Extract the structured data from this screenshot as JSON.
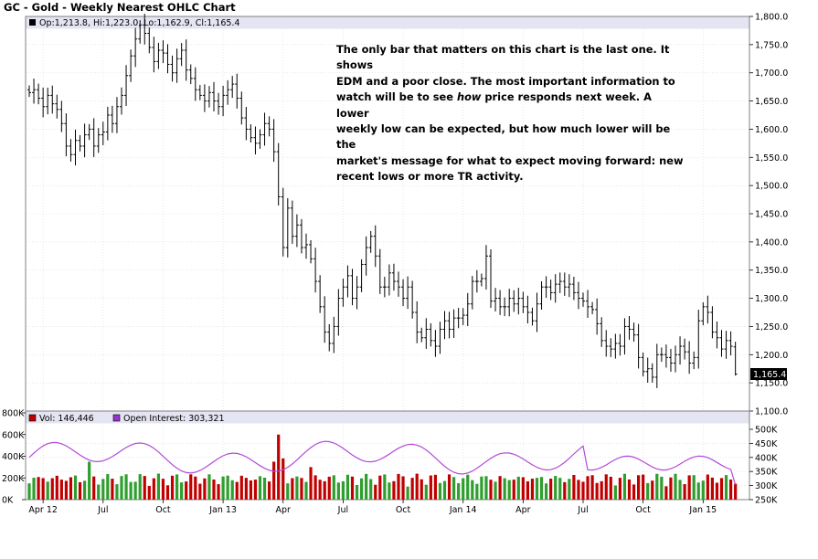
{
  "chart_data": {
    "type": "ohlc",
    "title": "GC - Gold - Weekly Nearest OHLC Chart",
    "ohlc_readout": "Op:1,213.8, Hi:1,223.0, Lo:1,162.9, Cl:1,165.4",
    "last_price_label": "1,165.4",
    "last_close": 1165.4,
    "price_axis": {
      "range": [
        1100,
        1800
      ],
      "ticks": [
        "1,800.0",
        "1,750.0",
        "1,700.0",
        "1,650.0",
        "1,600.0",
        "1,550.0",
        "1,500.0",
        "1,450.0",
        "1,400.0",
        "1,350.0",
        "1,300.0",
        "1,250.0",
        "1,200.0",
        "1,150.0",
        "1,100.0"
      ]
    },
    "x_axis": {
      "labels": [
        "Apr 12",
        "Jul",
        "Oct",
        "Jan 13",
        "Apr",
        "Jul",
        "Oct",
        "Jan 14",
        "Apr",
        "Jul",
        "Oct",
        "Jan 15"
      ],
      "label_week_index": [
        3,
        16,
        29,
        42,
        55,
        68,
        81,
        94,
        107,
        120,
        133,
        146
      ]
    },
    "grid": true,
    "weekly_closes": [
      1665,
      1670,
      1655,
      1640,
      1660,
      1645,
      1635,
      1610,
      1570,
      1555,
      1580,
      1570,
      1590,
      1600,
      1570,
      1590,
      1595,
      1625,
      1610,
      1640,
      1660,
      1695,
      1730,
      1760,
      1785,
      1770,
      1745,
      1720,
      1740,
      1735,
      1715,
      1700,
      1725,
      1740,
      1705,
      1690,
      1670,
      1660,
      1650,
      1665,
      1650,
      1640,
      1660,
      1670,
      1680,
      1655,
      1620,
      1600,
      1585,
      1575,
      1590,
      1610,
      1600,
      1560,
      1480,
      1390,
      1460,
      1410,
      1430,
      1390,
      1395,
      1370,
      1330,
      1285,
      1240,
      1220,
      1250,
      1300,
      1320,
      1340,
      1300,
      1320,
      1360,
      1390,
      1410,
      1375,
      1320,
      1320,
      1345,
      1330,
      1320,
      1300,
      1320,
      1275,
      1240,
      1230,
      1245,
      1225,
      1215,
      1245,
      1260,
      1245,
      1265,
      1265,
      1270,
      1290,
      1330,
      1330,
      1335,
      1375,
      1295,
      1300,
      1285,
      1285,
      1300,
      1290,
      1300,
      1285,
      1275,
      1260,
      1290,
      1320,
      1320,
      1310,
      1325,
      1330,
      1320,
      1325,
      1310,
      1300,
      1295,
      1285,
      1280,
      1255,
      1225,
      1215,
      1210,
      1220,
      1215,
      1250,
      1245,
      1235,
      1195,
      1170,
      1175,
      1160,
      1200,
      1200,
      1195,
      1185,
      1200,
      1215,
      1205,
      1185,
      1195,
      1260,
      1285,
      1275,
      1240,
      1230,
      1210,
      1225,
      1215,
      1165.4
    ],
    "volume": {
      "label": "Vol: 146,446",
      "color": "#c00000",
      "axis_ticks": [
        "800K",
        "600K",
        "400K",
        "200K",
        "0K"
      ],
      "range": [
        0,
        800000
      ]
    },
    "open_interest": {
      "label": "Open Interest: 303,321",
      "color": "#9933cc",
      "axis_ticks": [
        "500K",
        "450K",
        "400K",
        "350K",
        "300K",
        "250K"
      ],
      "range": [
        250000,
        500000
      ]
    }
  },
  "annotation": {
    "line1": "The only bar that matters on this chart is the last one.  It shows",
    "line2": "EDM and a poor close.  The most important information to",
    "line3_pre": "watch will be to see ",
    "line3_em": "how",
    "line3_post": " price responds next week.  A lower",
    "line4": "weekly low can be expected, but how much lower will be the",
    "line5": "market's message for what to expect moving forward: new",
    "line6": "recent lows or more TR activity."
  }
}
